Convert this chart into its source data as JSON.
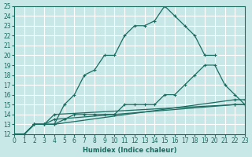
{
  "xlabel": "Humidex (Indice chaleur)",
  "bg_color": "#c8e8e8",
  "line_color": "#1a6b60",
  "xlim": [
    0,
    23
  ],
  "ylim": [
    12,
    25
  ],
  "s1_x": [
    0,
    1,
    2,
    3,
    4,
    5,
    6,
    7,
    8,
    9,
    10,
    11,
    12,
    13,
    14,
    15,
    16,
    17,
    18,
    19,
    20
  ],
  "s1_y": [
    12,
    12,
    13,
    13,
    13,
    15,
    16,
    18,
    18.5,
    20,
    20,
    22,
    23,
    23,
    23.5,
    25,
    24,
    23,
    22,
    20,
    20
  ],
  "s2_x": [
    0,
    1,
    2,
    3,
    4,
    5,
    6,
    7,
    8,
    9,
    10,
    11,
    12,
    13,
    14,
    15,
    16,
    17,
    18,
    19,
    20,
    21,
    22,
    23
  ],
  "s2_y": [
    12,
    12,
    13,
    13,
    13,
    13.5,
    14,
    14,
    14,
    14,
    14,
    15,
    15,
    15,
    15,
    16,
    16,
    17,
    18,
    19,
    19,
    17,
    16,
    15
  ],
  "s3_x": [
    0,
    1,
    2,
    3,
    4,
    22,
    23
  ],
  "s3_y": [
    12,
    12,
    13,
    13,
    13.5,
    15,
    15
  ],
  "s4_x": [
    0,
    1,
    2,
    3,
    4,
    22,
    23
  ],
  "s4_y": [
    12,
    12,
    13,
    13,
    14,
    15,
    15
  ],
  "s5_x": [
    0,
    1,
    2,
    3,
    4,
    22,
    23
  ],
  "s5_y": [
    12,
    12,
    13,
    13,
    13,
    15.5,
    15.5
  ]
}
